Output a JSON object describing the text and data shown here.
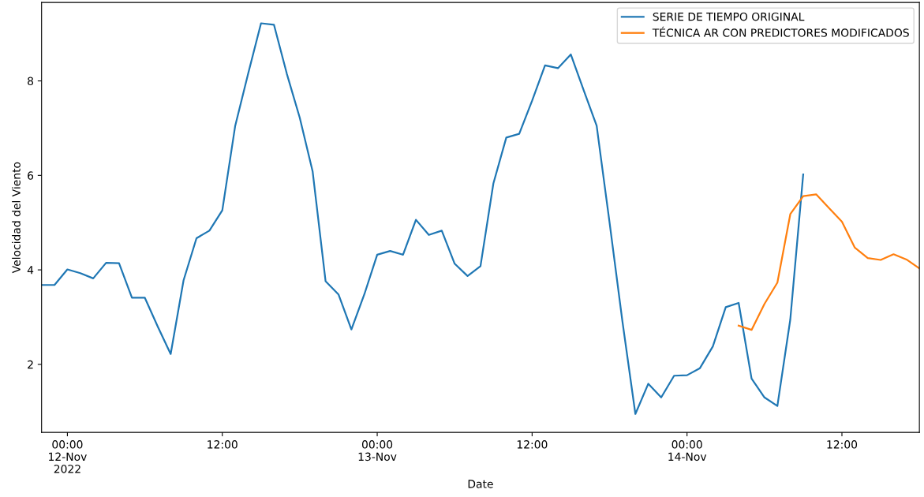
{
  "chart_data": {
    "type": "line",
    "xlabel": "Date",
    "ylabel": "Velocidad del Viento",
    "xlim": [
      "2022-11-11T22:00",
      "2022-11-14T18:00"
    ],
    "xticks": [
      {
        "value": "2022-11-12T00:00",
        "label": "00:00\n12-Nov\n2022"
      },
      {
        "value": "2022-11-12T12:00",
        "label": "12:00"
      },
      {
        "value": "2022-11-13T00:00",
        "label": "00:00\n13-Nov"
      },
      {
        "value": "2022-11-13T12:00",
        "label": "12:00"
      },
      {
        "value": "2022-11-14T00:00",
        "label": "00:00\n14-Nov"
      },
      {
        "value": "2022-11-14T12:00",
        "label": "12:00"
      }
    ],
    "ylim": [
      0.56,
      9.66
    ],
    "yticks": [
      2,
      4,
      6,
      8
    ],
    "grid": false,
    "legend": "top right",
    "series": [
      {
        "name": "SERIE DE TIEMPO ORIGINAL",
        "color": "#1f77b4",
        "x": [
          "2022-11-11T22:00",
          "2022-11-11T23:00",
          "2022-11-12T00:00",
          "2022-11-12T01:00",
          "2022-11-12T02:00",
          "2022-11-12T03:00",
          "2022-11-12T04:00",
          "2022-11-12T05:00",
          "2022-11-12T06:00",
          "2022-11-12T07:00",
          "2022-11-12T08:00",
          "2022-11-12T09:00",
          "2022-11-12T10:00",
          "2022-11-12T11:00",
          "2022-11-12T12:00",
          "2022-11-12T13:00",
          "2022-11-12T14:00",
          "2022-11-12T15:00",
          "2022-11-12T16:00",
          "2022-11-12T17:00",
          "2022-11-12T18:00",
          "2022-11-12T19:00",
          "2022-11-12T20:00",
          "2022-11-12T21:00",
          "2022-11-12T22:00",
          "2022-11-12T23:00",
          "2022-11-13T00:00",
          "2022-11-13T01:00",
          "2022-11-13T02:00",
          "2022-11-13T03:00",
          "2022-11-13T04:00",
          "2022-11-13T05:00",
          "2022-11-13T06:00",
          "2022-11-13T07:00",
          "2022-11-13T08:00",
          "2022-11-13T09:00",
          "2022-11-13T10:00",
          "2022-11-13T11:00",
          "2022-11-13T12:00",
          "2022-11-13T13:00",
          "2022-11-13T14:00",
          "2022-11-13T15:00",
          "2022-11-13T16:00",
          "2022-11-13T17:00",
          "2022-11-13T18:00",
          "2022-11-13T19:00",
          "2022-11-13T20:00",
          "2022-11-13T21:00",
          "2022-11-13T22:00",
          "2022-11-13T23:00",
          "2022-11-14T00:00",
          "2022-11-14T01:00",
          "2022-11-14T02:00",
          "2022-11-14T03:00",
          "2022-11-14T04:00",
          "2022-11-14T05:00",
          "2022-11-14T06:00",
          "2022-11-14T07:00",
          "2022-11-14T08:00",
          "2022-11-14T09:00"
        ],
        "values": [
          3.68,
          3.68,
          4.01,
          3.93,
          3.82,
          4.15,
          4.14,
          3.41,
          3.41,
          2.8,
          2.22,
          3.78,
          4.67,
          4.83,
          5.26,
          7.05,
          8.15,
          9.22,
          9.19,
          8.15,
          7.22,
          6.08,
          3.76,
          3.48,
          2.74,
          3.48,
          4.32,
          4.4,
          4.32,
          5.06,
          4.74,
          4.83,
          4.13,
          3.87,
          4.08,
          5.83,
          6.8,
          6.88,
          7.58,
          8.33,
          8.27,
          8.56,
          7.8,
          7.05,
          5.0,
          2.9,
          0.95,
          1.59,
          1.3,
          1.76,
          1.77,
          1.92,
          2.38,
          3.21,
          3.3,
          1.7,
          1.3,
          1.12,
          2.95,
          6.02
        ]
      },
      {
        "name": "TÉCNICA AR CON PREDICTORES MODIFICADOS",
        "color": "#ff7f0e",
        "x": [
          "2022-11-14T04:00",
          "2022-11-14T05:00",
          "2022-11-14T06:00",
          "2022-11-14T07:00",
          "2022-11-14T08:00",
          "2022-11-14T09:00",
          "2022-11-14T10:00",
          "2022-11-14T11:00",
          "2022-11-14T12:00",
          "2022-11-14T13:00",
          "2022-11-14T14:00",
          "2022-11-14T15:00",
          "2022-11-14T16:00",
          "2022-11-14T17:00",
          "2022-11-14T18:00"
        ],
        "values": [
          2.82,
          2.73,
          3.28,
          3.73,
          5.18,
          5.56,
          5.6,
          5.31,
          5.02,
          4.47,
          4.25,
          4.21,
          4.33,
          4.22,
          4.03
        ]
      }
    ]
  }
}
